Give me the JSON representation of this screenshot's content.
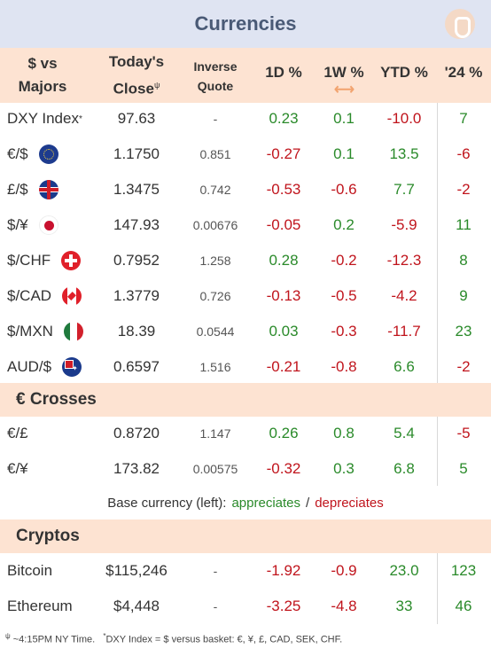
{
  "title": "Currencies",
  "headers": {
    "pair": "$ vs Majors",
    "close": "Today's Close",
    "close_mark": "ψ",
    "inverse": "Inverse Quote",
    "d1": "1D %",
    "w1": "1W %",
    "ytd": "YTD %",
    "y24": "'24 %"
  },
  "majors": [
    {
      "name": "DXY Index",
      "mark": "*",
      "flag": "",
      "close": "97.63",
      "inverse": "-",
      "d1": "0.23",
      "w1": "0.1",
      "ytd": "-10.0",
      "y24": "7"
    },
    {
      "name": "€/$",
      "mark": "",
      "flag": "eu-flag-icon",
      "close": "1.1750",
      "inverse": "0.851",
      "d1": "-0.27",
      "w1": "0.1",
      "ytd": "13.5",
      "y24": "-6"
    },
    {
      "name": "£/$",
      "mark": "",
      "flag": "uk-flag-icon",
      "close": "1.3475",
      "inverse": "0.742",
      "d1": "-0.53",
      "w1": "-0.6",
      "ytd": "7.7",
      "y24": "-2"
    },
    {
      "name": "$/¥",
      "mark": "",
      "flag": "japan-flag-icon",
      "close": "147.93",
      "inverse": "0.00676",
      "d1": "-0.05",
      "w1": "0.2",
      "ytd": "-5.9",
      "y24": "11"
    },
    {
      "name": "$/CHF",
      "mark": "",
      "flag": "swiss-flag-icon",
      "close": "0.7952",
      "inverse": "1.258",
      "d1": "0.28",
      "w1": "-0.2",
      "ytd": "-12.3",
      "y24": "8"
    },
    {
      "name": "$/CAD",
      "mark": "",
      "flag": "canada-flag-icon",
      "close": "1.3779",
      "inverse": "0.726",
      "d1": "-0.13",
      "w1": "-0.5",
      "ytd": "-4.2",
      "y24": "9"
    },
    {
      "name": "$/MXN",
      "mark": "",
      "flag": "mexico-flag-icon",
      "close": "18.39",
      "inverse": "0.0544",
      "d1": "0.03",
      "w1": "-0.3",
      "ytd": "-11.7",
      "y24": "23"
    },
    {
      "name": "AUD/$",
      "mark": "",
      "flag": "australia-flag-icon",
      "close": "0.6597",
      "inverse": "1.516",
      "d1": "-0.21",
      "w1": "-0.8",
      "ytd": "6.6",
      "y24": "-2"
    }
  ],
  "crosses_title": "€ Crosses",
  "crosses": [
    {
      "name": "€/£",
      "close": "0.8720",
      "inverse": "1.147",
      "d1": "0.26",
      "w1": "0.8",
      "ytd": "5.4",
      "y24": "-5"
    },
    {
      "name": "€/¥",
      "close": "173.82",
      "inverse": "0.00575",
      "d1": "-0.32",
      "w1": "0.3",
      "ytd": "6.8",
      "y24": "5"
    }
  ],
  "legend": {
    "prefix": "Base currency (left):",
    "appreciates": "appreciates",
    "sep": "/",
    "depreciates": "depreciates"
  },
  "cryptos_title": "Cryptos",
  "cryptos": [
    {
      "name": "Bitcoin",
      "close": "$115,246",
      "inverse": "-",
      "d1": "-1.92",
      "w1": "-0.9",
      "ytd": "23.0",
      "y24": "123"
    },
    {
      "name": "Ethereum",
      "close": "$4,448",
      "inverse": "-",
      "d1": "-3.25",
      "w1": "-4.8",
      "ytd": "33",
      "y24": "46"
    }
  ],
  "footnote": {
    "mark1": "ψ",
    "text1": " ~4:15PM NY Time.",
    "mark2": "*",
    "text2": "DXY Index = $ versus basket: €, ¥, £, CAD, SEK, CHF."
  },
  "colors": {
    "positive": "#2a8a2a",
    "negative": "#c0141c",
    "header_bg": "#fde3d2",
    "title_bg": "#dfe4f2"
  }
}
